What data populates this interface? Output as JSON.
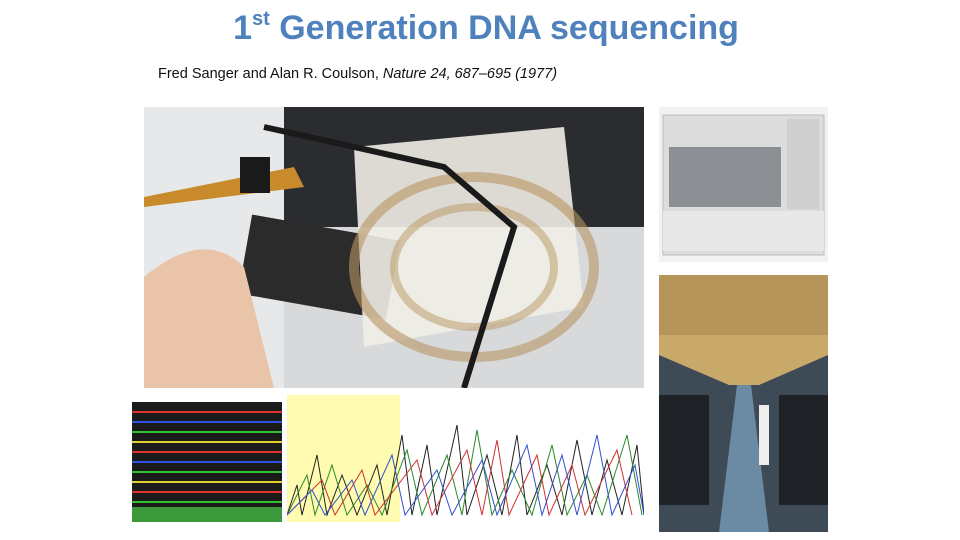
{
  "title": {
    "number": "1",
    "superscript": "st",
    "text": "Generation DNA sequencing"
  },
  "citation": {
    "authors": "Fred Sanger and Alan R. Coulson,",
    "reference": "Nature 24, 687–695 (1977)"
  }
}
